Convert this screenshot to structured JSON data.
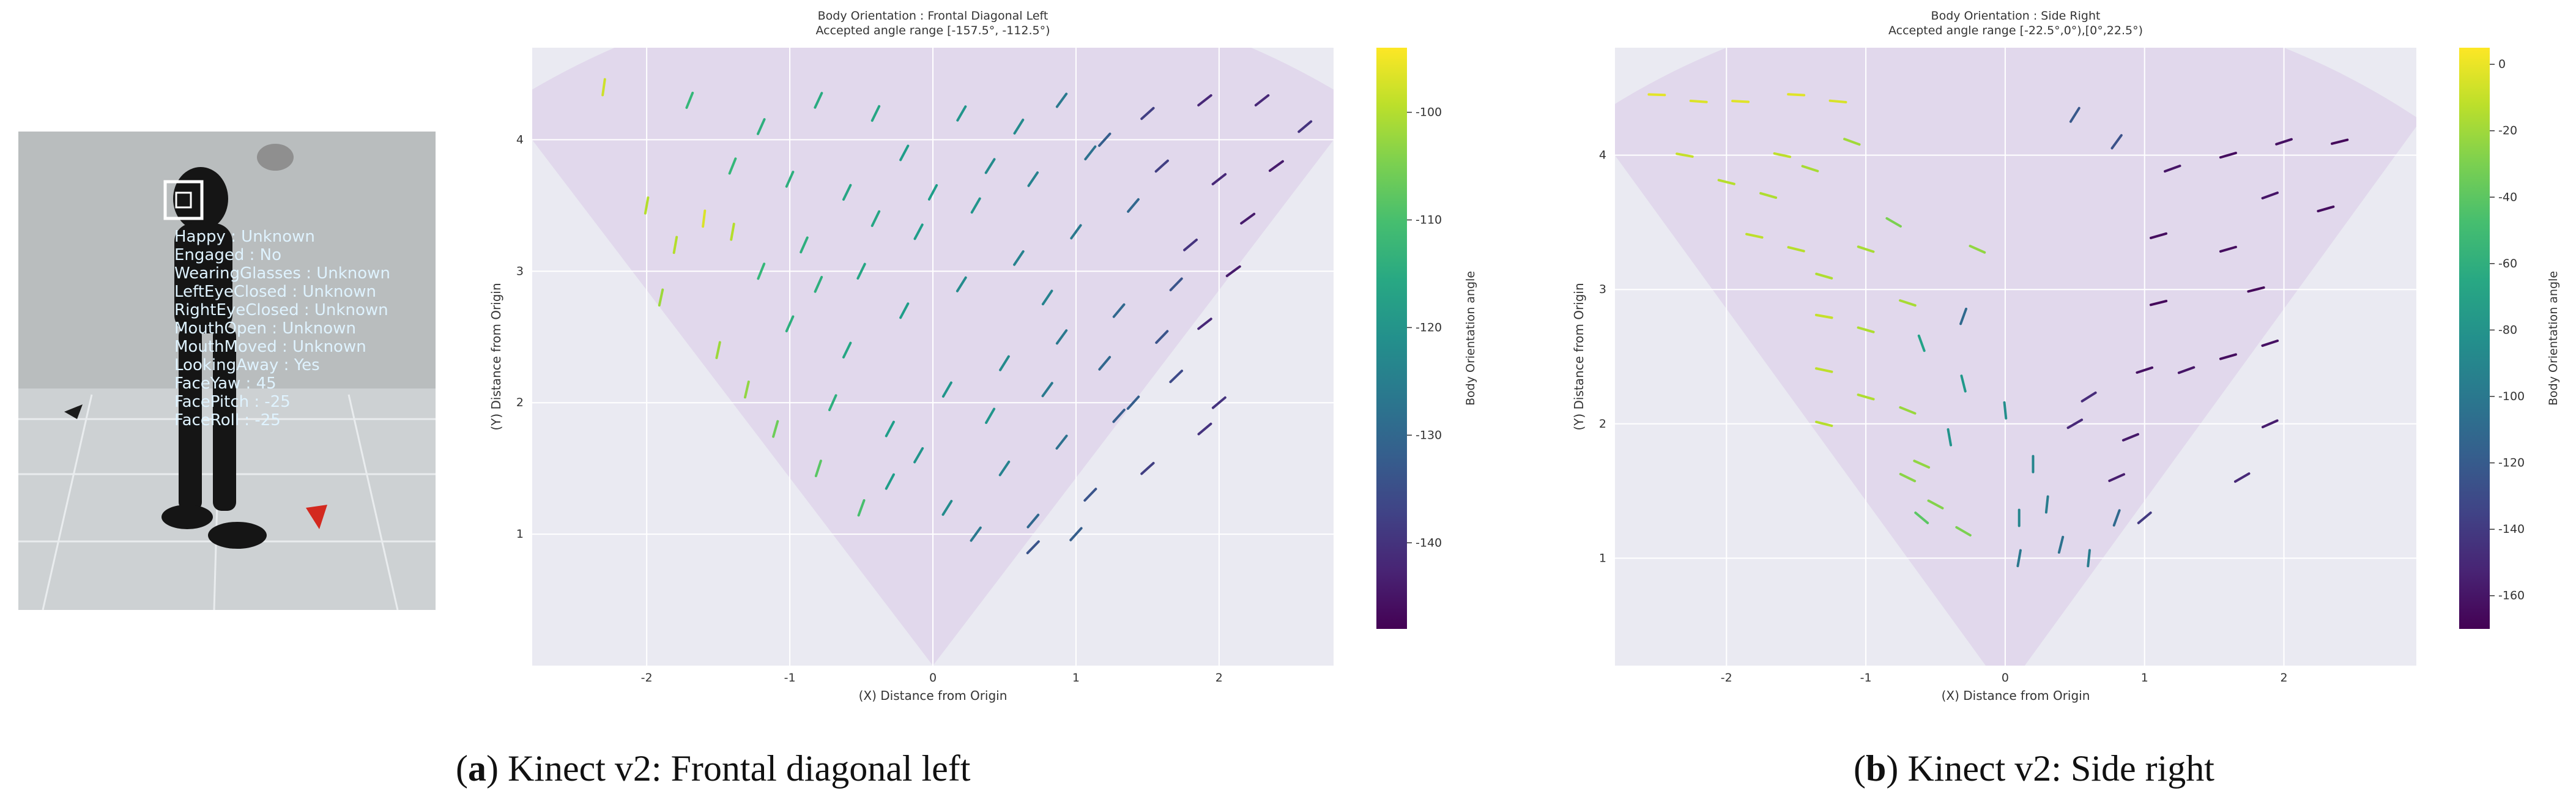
{
  "figure": {
    "photo": {
      "face_labels": [
        "Happy : Unknown",
        "Engaged : No",
        "WearingGlasses : Unknown",
        "LeftEyeClosed : Unknown",
        "RightEyeClosed : Unknown",
        "MouthOpen : Unknown",
        "MouthMoved : Unknown",
        "LookingAway : Yes",
        "FaceYaw : 45",
        "FacePitch : -25",
        "FaceRoll : -25"
      ],
      "overlay_color": "#dff3ff",
      "floor_color": "#c9cdd0",
      "wall_color": "#b8bcbd"
    },
    "captions": [
      {
        "letter": "a",
        "open": "(",
        "close": ") Kinect v2: Frontal diagonal left"
      },
      {
        "letter": "b",
        "open": "(",
        "close": ") Kinect v2: Side right"
      }
    ]
  },
  "chart_data": [
    {
      "type": "scatter",
      "subtype": "quiver",
      "title": "Body Orientation : Frontal Diagonal Left",
      "subtitle": "Accepted angle range [-157.5°, -112.5°)",
      "xlabel": "(X) Distance from Origin",
      "ylabel": "(Y) Distance from Origin",
      "xlim": [
        -2.8,
        2.8
      ],
      "ylim": [
        0,
        4.7
      ],
      "xticks": [
        "-2",
        "-1",
        "0",
        "1",
        "2"
      ],
      "xtick_values": [
        -2,
        -1,
        0,
        1,
        2
      ],
      "yticks": [
        "1",
        "2",
        "3",
        "4"
      ],
      "ytick_values": [
        1,
        2,
        3,
        4
      ],
      "grid": true,
      "background": "#eaeaf2",
      "fov_color": "#e1d8ec",
      "fov_half_angle_deg": 35,
      "colorbar": {
        "label": "Body Orientation angle",
        "cmap": "viridis",
        "range": [
          -148,
          -94
        ],
        "ticks": [
          "-100",
          "-110",
          "-120",
          "-130",
          "-140"
        ],
        "tick_values": [
          -100,
          -110,
          -120,
          -130,
          -140
        ]
      },
      "points": [
        [
          -2.3,
          4.4,
          -98
        ],
        [
          -2.0,
          3.5,
          -100
        ],
        [
          -1.8,
          3.2,
          -100
        ],
        [
          -1.6,
          3.4,
          -97
        ],
        [
          -1.4,
          3.3,
          -100
        ],
        [
          -1.9,
          2.8,
          -102
        ],
        [
          -1.5,
          2.4,
          -102
        ],
        [
          -1.3,
          2.1,
          -103
        ],
        [
          -1.1,
          1.8,
          -106
        ],
        [
          -0.8,
          1.5,
          -108
        ],
        [
          -0.5,
          1.2,
          -110
        ],
        [
          -1.7,
          4.3,
          -112
        ],
        [
          -1.2,
          4.1,
          -114
        ],
        [
          -0.8,
          4.3,
          -115
        ],
        [
          -0.4,
          4.2,
          -116
        ],
        [
          -1.4,
          3.8,
          -112
        ],
        [
          -1.0,
          3.7,
          -114
        ],
        [
          -0.6,
          3.6,
          -116
        ],
        [
          -0.2,
          3.9,
          -118
        ],
        [
          0.2,
          4.2,
          -120
        ],
        [
          0.6,
          4.1,
          -122
        ],
        [
          -1.2,
          3.0,
          -112
        ],
        [
          -0.9,
          3.2,
          -114
        ],
        [
          -0.5,
          3.0,
          -116
        ],
        [
          -0.1,
          3.3,
          -118
        ],
        [
          0.3,
          3.5,
          -120
        ],
        [
          0.7,
          3.7,
          -124
        ],
        [
          1.1,
          3.9,
          -128
        ],
        [
          -1.0,
          2.6,
          -114
        ],
        [
          -0.6,
          2.4,
          -116
        ],
        [
          -0.2,
          2.7,
          -118
        ],
        [
          0.2,
          2.9,
          -122
        ],
        [
          0.6,
          3.1,
          -124
        ],
        [
          1.0,
          3.3,
          -126
        ],
        [
          1.4,
          3.5,
          -130
        ],
        [
          -0.7,
          2.0,
          -114
        ],
        [
          -0.3,
          1.8,
          -118
        ],
        [
          0.1,
          2.1,
          -120
        ],
        [
          0.5,
          2.3,
          -122
        ],
        [
          0.9,
          2.5,
          -126
        ],
        [
          1.3,
          2.7,
          -130
        ],
        [
          1.7,
          2.9,
          -134
        ],
        [
          -0.3,
          1.4,
          -118
        ],
        [
          0.1,
          1.2,
          -122
        ],
        [
          0.5,
          1.5,
          -124
        ],
        [
          0.9,
          1.7,
          -128
        ],
        [
          1.3,
          1.9,
          -132
        ],
        [
          1.7,
          2.2,
          -136
        ],
        [
          0.3,
          1.0,
          -126
        ],
        [
          0.7,
          1.1,
          -130
        ],
        [
          1.1,
          1.3,
          -134
        ],
        [
          1.5,
          1.5,
          -138
        ],
        [
          1.9,
          1.8,
          -140
        ],
        [
          1.5,
          4.2,
          -138
        ],
        [
          1.9,
          4.3,
          -142
        ],
        [
          2.3,
          4.3,
          -142
        ],
        [
          2.6,
          4.1,
          -140
        ],
        [
          1.6,
          3.8,
          -138
        ],
        [
          2.0,
          3.7,
          -142
        ],
        [
          2.4,
          3.8,
          -144
        ],
        [
          1.8,
          3.2,
          -140
        ],
        [
          2.2,
          3.4,
          -144
        ],
        [
          1.9,
          2.6,
          -142
        ],
        [
          2.1,
          3.0,
          -144
        ],
        [
          0.9,
          4.3,
          -126
        ],
        [
          1.2,
          4.0,
          -132
        ],
        [
          0.4,
          3.8,
          -122
        ],
        [
          0.0,
          3.6,
          -118
        ],
        [
          -0.4,
          3.4,
          -116
        ],
        [
          -0.8,
          2.9,
          -114
        ],
        [
          0.8,
          2.8,
          -124
        ],
        [
          1.2,
          2.3,
          -130
        ],
        [
          1.6,
          2.5,
          -134
        ],
        [
          0.4,
          1.9,
          -120
        ],
        [
          0.8,
          2.1,
          -126
        ],
        [
          -0.1,
          1.6,
          -120
        ],
        [
          1.0,
          1.0,
          -132
        ],
        [
          0.7,
          0.9,
          -134
        ],
        [
          1.4,
          2.0,
          -132
        ],
        [
          2.0,
          2.0,
          -140
        ]
      ]
    },
    {
      "type": "scatter",
      "subtype": "quiver",
      "title": "Body Orientation : Side Right",
      "subtitle": "Accepted angle range [-22.5°,0°),[0°,22.5°)",
      "xlabel": "(X) Distance from Origin",
      "ylabel": "(Y) Distance from Origin",
      "xlim": [
        -2.8,
        2.95
      ],
      "ylim": [
        0.2,
        4.8
      ],
      "xticks": [
        "-2",
        "-1",
        "0",
        "1",
        "2"
      ],
      "xtick_values": [
        -2,
        -1,
        0,
        1,
        2
      ],
      "yticks": [
        "1",
        "2",
        "3",
        "4"
      ],
      "ytick_values": [
        1,
        2,
        3,
        4
      ],
      "grid": true,
      "background": "#eaeaf2",
      "fov_color": "#e1d8ec",
      "fov_half_angle_deg": 35,
      "colorbar": {
        "label": "Body Orientation angle",
        "cmap": "viridis",
        "range": [
          -170,
          5
        ],
        "ticks": [
          "0",
          "-20",
          "-40",
          "-60",
          "-80",
          "-100",
          "-120",
          "-140",
          "-160"
        ],
        "tick_values": [
          0,
          -20,
          -40,
          -60,
          -80,
          -100,
          -120,
          -140,
          -160
        ]
      },
      "points": [
        [
          -2.5,
          4.45,
          -2
        ],
        [
          -2.2,
          4.4,
          -4
        ],
        [
          -1.9,
          4.4,
          -3
        ],
        [
          -1.5,
          4.45,
          -3
        ],
        [
          -1.2,
          4.4,
          -5
        ],
        [
          -2.3,
          4.0,
          -10
        ],
        [
          -2.0,
          3.8,
          -14
        ],
        [
          -1.7,
          3.7,
          -16
        ],
        [
          -1.4,
          3.9,
          -18
        ],
        [
          -1.1,
          4.1,
          -20
        ],
        [
          -1.8,
          3.4,
          -12
        ],
        [
          -1.5,
          3.3,
          -14
        ],
        [
          -1.3,
          3.1,
          -16
        ],
        [
          -1.0,
          3.3,
          -18
        ],
        [
          -1.3,
          2.8,
          -10
        ],
        [
          -1.0,
          2.7,
          -16
        ],
        [
          -0.7,
          2.9,
          -18
        ],
        [
          -1.3,
          2.4,
          -12
        ],
        [
          -1.0,
          2.2,
          -16
        ],
        [
          -0.7,
          2.1,
          -22
        ],
        [
          -1.3,
          2.0,
          -14
        ],
        [
          -0.6,
          1.7,
          -24
        ],
        [
          -0.5,
          1.4,
          -28
        ],
        [
          -0.3,
          1.2,
          -30
        ],
        [
          -0.7,
          1.6,
          -26
        ],
        [
          -0.6,
          2.6,
          -70
        ],
        [
          -0.3,
          2.3,
          -76
        ],
        [
          0.0,
          2.1,
          -84
        ],
        [
          0.2,
          1.7,
          -90
        ],
        [
          -0.4,
          1.9,
          -80
        ],
        [
          0.1,
          1.3,
          -90
        ],
        [
          0.4,
          1.1,
          -104
        ],
        [
          0.6,
          1.0,
          -96
        ],
        [
          0.8,
          1.3,
          -110
        ],
        [
          0.3,
          1.4,
          -96
        ],
        [
          1.2,
          3.9,
          -160
        ],
        [
          1.1,
          3.4,
          -164
        ],
        [
          1.1,
          2.9,
          -166
        ],
        [
          1.0,
          2.4,
          -162
        ],
        [
          0.9,
          1.9,
          -158
        ],
        [
          0.8,
          1.6,
          -156
        ],
        [
          1.3,
          2.4,
          -160
        ],
        [
          1.6,
          2.5,
          -164
        ],
        [
          1.9,
          2.6,
          -162
        ],
        [
          1.8,
          3.0,
          -166
        ],
        [
          1.6,
          3.3,
          -164
        ],
        [
          1.9,
          3.7,
          -160
        ],
        [
          2.3,
          3.6,
          -164
        ],
        [
          2.4,
          4.1,
          -166
        ],
        [
          2.0,
          4.1,
          -162
        ],
        [
          1.6,
          4.0,
          -164
        ],
        [
          0.5,
          4.3,
          -122
        ],
        [
          0.8,
          4.1,
          -126
        ],
        [
          -0.3,
          2.8,
          -110
        ],
        [
          -0.2,
          3.3,
          -24
        ],
        [
          -0.8,
          3.5,
          -30
        ],
        [
          -1.6,
          4.0,
          -12
        ],
        [
          -0.6,
          1.3,
          -40
        ],
        [
          0.1,
          1.0,
          -100
        ],
        [
          0.5,
          2.0,
          -150
        ],
        [
          0.6,
          2.2,
          -148
        ],
        [
          1.0,
          1.3,
          -140
        ],
        [
          1.7,
          1.6,
          -150
        ],
        [
          1.9,
          2.0,
          -156
        ]
      ]
    }
  ]
}
